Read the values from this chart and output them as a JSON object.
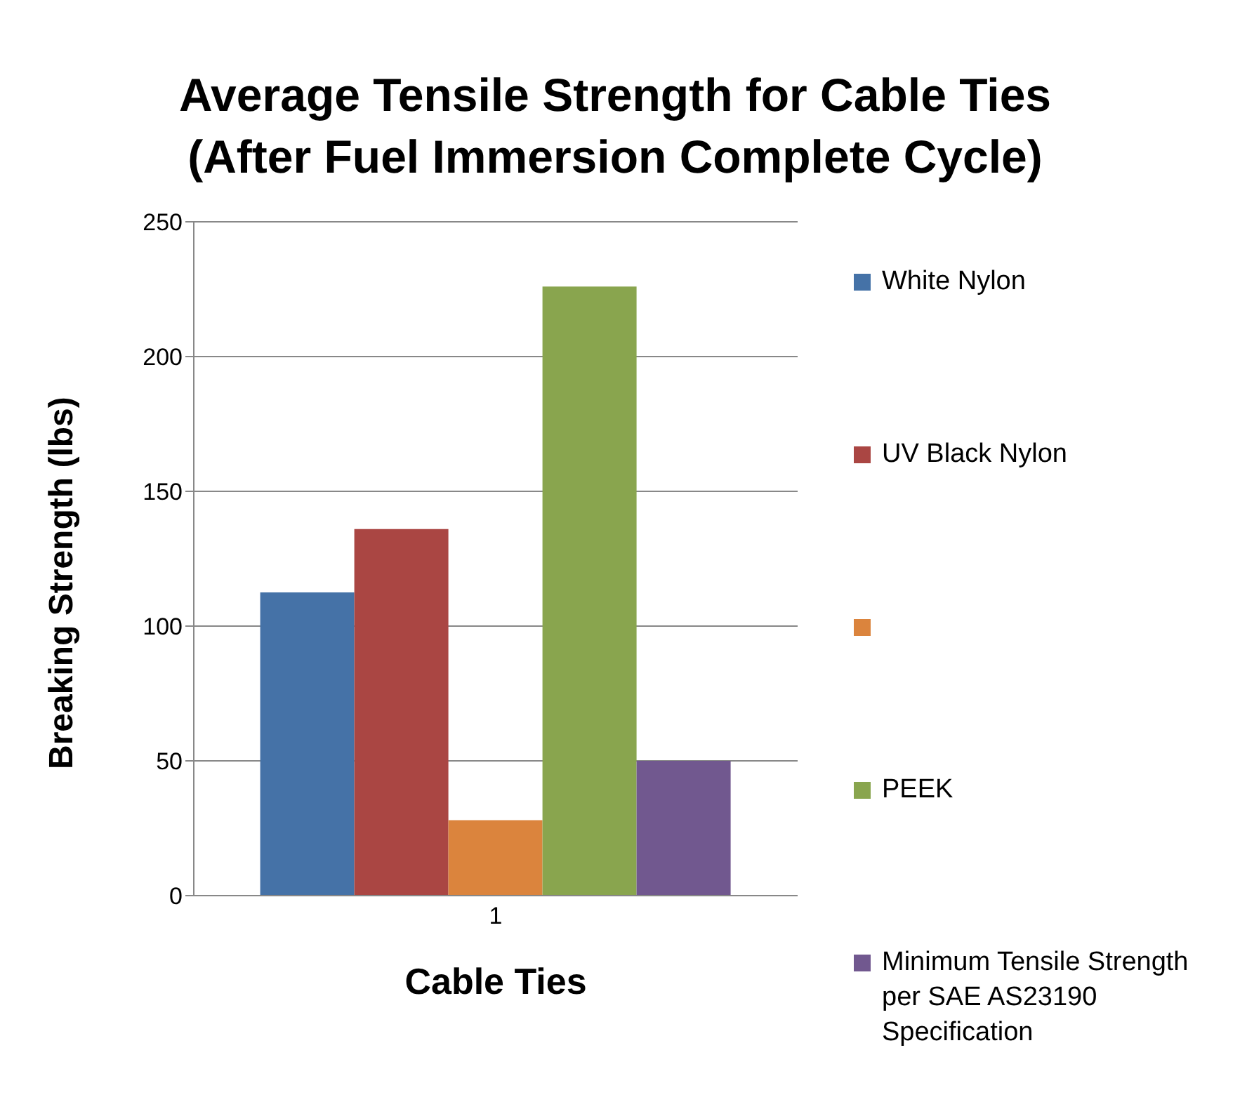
{
  "chart_data": {
    "type": "bar",
    "title": "Average Tensile Strength for Cable Ties (After Fuel Immersion Complete Cycle)",
    "xlabel": "Cable Ties",
    "ylabel": "Breaking Strength (lbs)",
    "categories": [
      "1"
    ],
    "series": [
      {
        "name": "White Nylon",
        "color": "#4572a7",
        "values": [
          112.5
        ]
      },
      {
        "name": "UV Black Nylon",
        "color": "#aa4643",
        "values": [
          136
        ]
      },
      {
        "color": "#db843d",
        "values": [
          28
        ]
      },
      {
        "name": "PEEK",
        "color": "#89a54e",
        "values": [
          226
        ]
      },
      {
        "name": "Minimum Tensile Strength per SAE AS23190 Specification",
        "color": "#71588f",
        "values": [
          50
        ]
      }
    ],
    "ylim": [
      0,
      250
    ],
    "yticks": [
      0,
      50,
      100,
      150,
      200,
      250
    ],
    "grid": "y",
    "legend": "right"
  }
}
